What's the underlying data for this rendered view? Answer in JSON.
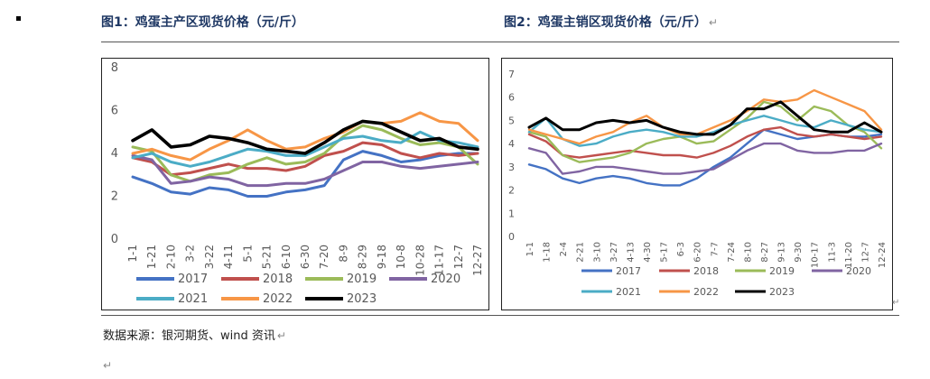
{
  "fig1_title": "图1：鸡蛋主产区现货价格（元/斤）",
  "fig2_title": "图2：鸡蛋主销区现货价格（元/斤）",
  "source": "数据来源：银河期货、wind 资讯",
  "para_mark": "↵",
  "chart_data": [
    {
      "type": "line",
      "title": "",
      "xlabel": "",
      "ylabel": "",
      "ylim": [
        0,
        8
      ],
      "yticks": [
        0,
        2,
        4,
        6,
        8
      ],
      "grid": false,
      "legend": "bottom",
      "categories": [
        "1-1",
        "1-21",
        "2-10",
        "3-2",
        "3-22",
        "4-11",
        "5-1",
        "5-21",
        "6-10",
        "6-30",
        "7-20",
        "8-9",
        "8-29",
        "9-18",
        "10-8",
        "10-28",
        "11-17",
        "12-7",
        "12-27"
      ],
      "series": [
        {
          "name": "2017",
          "color": "#4472C4",
          "values": [
            2.9,
            2.6,
            2.2,
            2.1,
            2.4,
            2.3,
            2.0,
            2.0,
            2.2,
            2.3,
            2.5,
            3.7,
            4.1,
            3.9,
            3.6,
            3.7,
            3.9,
            4.0,
            4.0
          ]
        },
        {
          "name": "2018",
          "color": "#C0504D",
          "values": [
            3.8,
            3.6,
            3.0,
            3.1,
            3.3,
            3.5,
            3.3,
            3.3,
            3.2,
            3.4,
            3.9,
            4.1,
            4.5,
            4.4,
            4.0,
            3.8,
            4.0,
            3.9,
            4.0
          ]
        },
        {
          "name": "2019",
          "color": "#9BBB59",
          "values": [
            4.3,
            4.1,
            3.0,
            2.7,
            3.0,
            3.1,
            3.5,
            3.8,
            3.5,
            3.6,
            4.0,
            4.8,
            5.3,
            5.1,
            4.7,
            4.4,
            4.5,
            4.3,
            3.5
          ]
        },
        {
          "name": "2020",
          "color": "#8064A2",
          "values": [
            3.9,
            3.7,
            2.6,
            2.7,
            2.9,
            2.8,
            2.5,
            2.5,
            2.6,
            2.6,
            2.8,
            3.2,
            3.6,
            3.6,
            3.4,
            3.3,
            3.4,
            3.5,
            3.6
          ]
        },
        {
          "name": "2021",
          "color": "#4BACC6",
          "values": [
            3.8,
            4.0,
            3.6,
            3.4,
            3.6,
            3.9,
            4.2,
            4.1,
            3.9,
            3.9,
            4.3,
            4.7,
            4.8,
            4.6,
            4.5,
            5.0,
            4.6,
            4.5,
            4.3
          ]
        },
        {
          "name": "2022",
          "color": "#F79646",
          "values": [
            4.0,
            4.2,
            3.9,
            3.7,
            4.2,
            4.6,
            5.1,
            4.6,
            4.2,
            4.3,
            4.7,
            5.0,
            5.5,
            5.4,
            5.5,
            5.9,
            5.5,
            5.4,
            4.6
          ]
        },
        {
          "name": "2023",
          "color": "#000000",
          "values": [
            4.6,
            5.1,
            4.3,
            4.4,
            4.8,
            4.7,
            4.5,
            4.2,
            4.1,
            4.0,
            4.5,
            5.1,
            5.5,
            5.4,
            5.0,
            4.6,
            4.7,
            4.3,
            4.2
          ]
        }
      ]
    },
    {
      "type": "line",
      "title": "",
      "xlabel": "",
      "ylabel": "",
      "ylim": [
        0,
        7
      ],
      "yticks": [
        0,
        1,
        2,
        3,
        4,
        5,
        6,
        7
      ],
      "grid": false,
      "legend": "bottom",
      "categories": [
        "1-1",
        "1-18",
        "2-4",
        "2-21",
        "3-10",
        "3-27",
        "4-13",
        "4-30",
        "5-17",
        "6-3",
        "6-20",
        "7-7",
        "7-24",
        "8-10",
        "8-27",
        "9-13",
        "9-30",
        "10-17",
        "11-3",
        "11-20",
        "12-7",
        "12-24"
      ],
      "series": [
        {
          "name": "2017",
          "color": "#4472C4",
          "values": [
            3.1,
            2.9,
            2.5,
            2.3,
            2.5,
            2.6,
            2.5,
            2.3,
            2.2,
            2.2,
            2.5,
            3.0,
            3.4,
            4.0,
            4.6,
            4.4,
            4.2,
            4.3,
            4.4,
            4.3,
            4.3,
            4.4
          ]
        },
        {
          "name": "2018",
          "color": "#C0504D",
          "values": [
            4.4,
            4.1,
            3.5,
            3.4,
            3.5,
            3.6,
            3.7,
            3.6,
            3.5,
            3.5,
            3.4,
            3.6,
            3.9,
            4.3,
            4.6,
            4.7,
            4.4,
            4.3,
            4.4,
            4.3,
            4.2,
            4.3
          ]
        },
        {
          "name": "2019",
          "color": "#9BBB59",
          "values": [
            4.5,
            4.3,
            3.5,
            3.2,
            3.3,
            3.4,
            3.6,
            4.0,
            4.2,
            4.3,
            4.0,
            4.1,
            4.6,
            5.1,
            5.8,
            5.6,
            5.0,
            5.6,
            5.4,
            4.8,
            4.5,
            3.8
          ]
        },
        {
          "name": "2020",
          "color": "#8064A2",
          "values": [
            3.8,
            3.6,
            2.7,
            2.8,
            3.0,
            3.0,
            2.9,
            2.8,
            2.7,
            2.7,
            2.8,
            2.9,
            3.3,
            3.7,
            4.0,
            4.0,
            3.7,
            3.6,
            3.6,
            3.7,
            3.7,
            4.0
          ]
        },
        {
          "name": "2021",
          "color": "#4BACC6",
          "values": [
            4.5,
            5.1,
            4.2,
            3.9,
            4.0,
            4.3,
            4.5,
            4.6,
            4.5,
            4.3,
            4.3,
            4.5,
            4.8,
            5.0,
            5.2,
            5.0,
            4.8,
            4.7,
            5.0,
            4.8,
            4.6,
            4.5
          ]
        },
        {
          "name": "2022",
          "color": "#F79646",
          "values": [
            4.6,
            4.4,
            4.2,
            4.0,
            4.3,
            4.5,
            4.9,
            5.2,
            4.7,
            4.4,
            4.4,
            4.7,
            5.0,
            5.4,
            5.9,
            5.8,
            5.9,
            6.3,
            6.0,
            5.7,
            5.4,
            4.6
          ]
        },
        {
          "name": "2023",
          "color": "#000000",
          "values": [
            4.7,
            5.1,
            4.6,
            4.6,
            4.9,
            5.0,
            4.9,
            5.0,
            4.7,
            4.5,
            4.4,
            4.4,
            4.8,
            5.5,
            5.5,
            5.8,
            5.2,
            4.6,
            4.5,
            4.5,
            4.9,
            4.5
          ]
        }
      ]
    }
  ]
}
